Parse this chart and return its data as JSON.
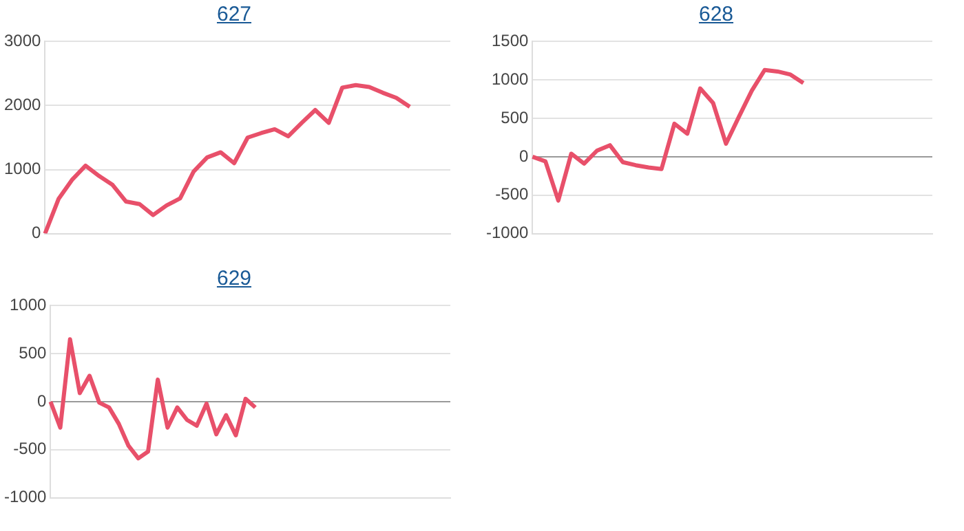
{
  "chart_data": [
    {
      "type": "line",
      "title": "627",
      "categories": [
        null,
        null,
        null,
        null,
        null,
        null,
        null,
        null,
        null,
        null,
        null,
        null,
        null,
        null,
        null,
        null,
        null,
        null,
        null,
        null,
        null,
        null,
        null,
        null,
        null,
        null,
        null,
        null,
        null,
        null,
        null
      ],
      "series": [
        {
          "color": "#e8506a",
          "values": [
            0,
            540,
            840,
            1060,
            900,
            760,
            500,
            460,
            290,
            440,
            550,
            970,
            1190,
            1270,
            1100,
            1500,
            1570,
            1630,
            1520,
            1730,
            1930,
            1730,
            2280,
            2320,
            2290,
            2200,
            2120,
            1980,
            null,
            null,
            null
          ]
        }
      ],
      "ylim": [
        0,
        3000
      ],
      "yticks": [
        0,
        1000,
        2000,
        3000
      ],
      "grid": "y",
      "tick_labels": "y",
      "legend": false
    },
    {
      "type": "line",
      "title": "628",
      "categories": [
        null,
        null,
        null,
        null,
        null,
        null,
        null,
        null,
        null,
        null,
        null,
        null,
        null,
        null,
        null,
        null,
        null,
        null,
        null,
        null,
        null,
        null,
        null,
        null,
        null,
        null,
        null,
        null,
        null,
        null,
        null,
        null
      ],
      "series": [
        {
          "color": "#e8506a",
          "values": [
            0,
            -60,
            -570,
            40,
            -90,
            80,
            150,
            -70,
            -110,
            -140,
            -160,
            430,
            300,
            890,
            700,
            170,
            520,
            860,
            1130,
            1110,
            1070,
            960,
            null,
            null,
            null,
            null,
            null,
            null,
            null,
            null,
            null,
            null
          ]
        }
      ],
      "ylim": [
        -1000,
        1500
      ],
      "yticks": [
        -1000,
        -500,
        0,
        500,
        1000,
        1500
      ],
      "grid": "y",
      "tick_labels": "y",
      "legend": false
    },
    {
      "type": "line",
      "title": "629",
      "categories": [
        null,
        null,
        null,
        null,
        null,
        null,
        null,
        null,
        null,
        null,
        null,
        null,
        null,
        null,
        null,
        null,
        null,
        null,
        null,
        null,
        null,
        null,
        null,
        null,
        null,
        null,
        null,
        null,
        null,
        null,
        null,
        null,
        null,
        null,
        null,
        null,
        null,
        null,
        null,
        null,
        null,
        null
      ],
      "series": [
        {
          "color": "#e8506a",
          "values": [
            0,
            -270,
            650,
            90,
            270,
            -10,
            -60,
            -230,
            -460,
            -590,
            -520,
            230,
            -270,
            -60,
            -190,
            -250,
            -20,
            -340,
            -140,
            -350,
            30,
            -60,
            null,
            null,
            null,
            null,
            null,
            null,
            null,
            null,
            null,
            null,
            null,
            null,
            null,
            null,
            null,
            null,
            null,
            null,
            null,
            null
          ]
        }
      ],
      "ylim": [
        -1000,
        1000
      ],
      "yticks": [
        -1000,
        -500,
        0,
        500,
        1000
      ],
      "grid": "y",
      "tick_labels": "y",
      "legend": false
    }
  ]
}
